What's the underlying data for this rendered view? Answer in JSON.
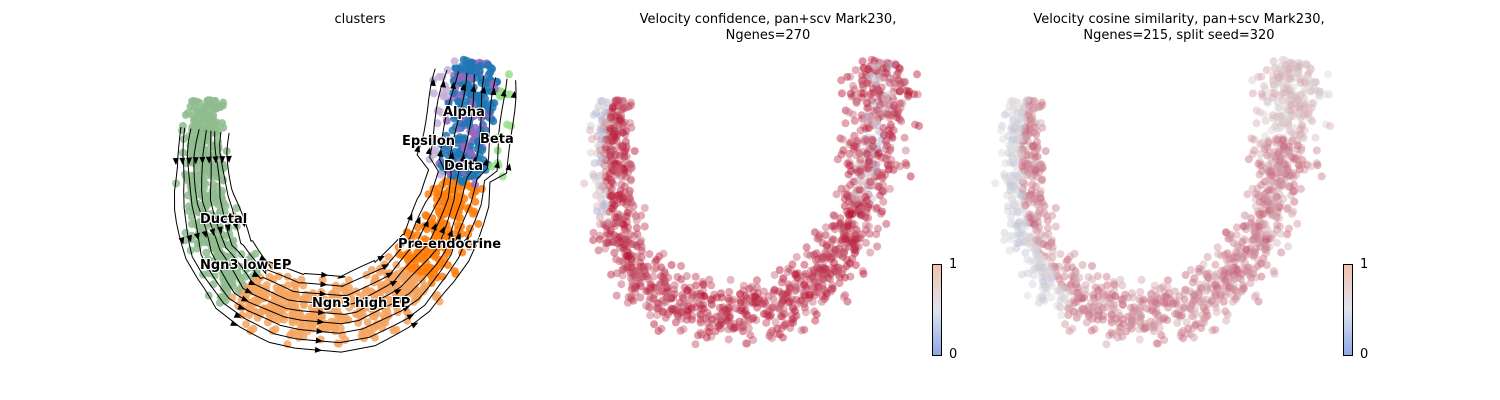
{
  "chart_data": [
    {
      "type": "scatter",
      "subtype": "embedding-streamplot",
      "title": "clusters",
      "clusters": [
        {
          "name": "Ductal",
          "color": "#8fbc8f"
        },
        {
          "name": "Ngn3 low EP",
          "color": "#f4a460"
        },
        {
          "name": "Ngn3 high EP",
          "color": "#f4a460"
        },
        {
          "name": "Pre-endocrine",
          "color": "#ff7f0e"
        },
        {
          "name": "Alpha",
          "color": "#1f77b4"
        },
        {
          "name": "Beta",
          "color": "#98df8a"
        },
        {
          "name": "Delta",
          "color": "#9467bd"
        },
        {
          "name": "Epsilon",
          "color": "#c5b0d5"
        }
      ],
      "velocity_arrows": true,
      "axes": "off"
    },
    {
      "type": "scatter",
      "subtype": "embedding-colored",
      "title": "Velocity confidence, pan+scv Mark230,\nNgenes=270",
      "colormap": "coolwarm",
      "colorbar": {
        "min": "0",
        "max": "1"
      },
      "axes": "off"
    },
    {
      "type": "scatter",
      "subtype": "embedding-colored",
      "title": "Velocity cosine similarity, pan+scv Mark230,\nNgenes=215, split seed=320",
      "colormap": "coolwarm",
      "colorbar": {
        "min": "0",
        "max": "1"
      },
      "axes": "off"
    }
  ]
}
